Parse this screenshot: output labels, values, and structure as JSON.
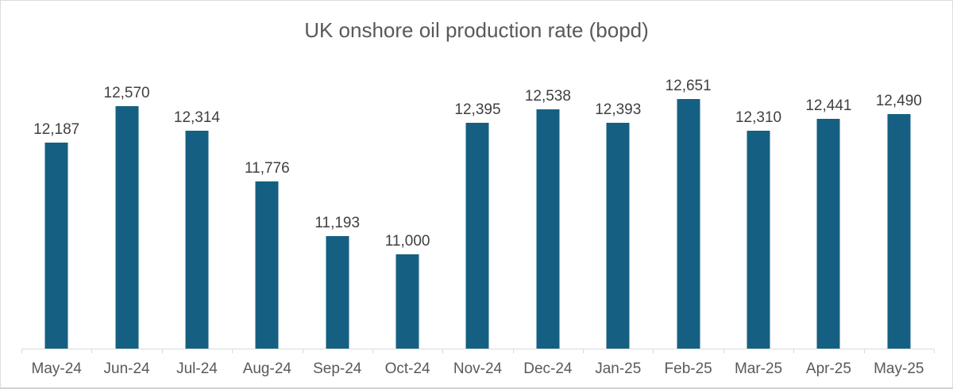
{
  "chart_data": {
    "type": "bar",
    "title": "UK onshore oil production rate (bopd)",
    "categories": [
      "May-24",
      "Jun-24",
      "Jul-24",
      "Aug-24",
      "Sep-24",
      "Oct-24",
      "Nov-24",
      "Dec-24",
      "Jan-25",
      "Feb-25",
      "Mar-25",
      "Apr-25",
      "May-25"
    ],
    "values": [
      12187,
      12570,
      12314,
      11776,
      11193,
      11000,
      12395,
      12538,
      12393,
      12651,
      12310,
      12441,
      12490
    ],
    "data_labels": [
      "12,187",
      "12,570",
      "12,314",
      "11,776",
      "11,193",
      "11,000",
      "12,395",
      "12,538",
      "12,393",
      "12,651",
      "12,310",
      "12,441",
      "12,490"
    ],
    "xlabel": "",
    "ylabel": "",
    "ylim": [
      10000,
      13000
    ],
    "grid": false,
    "legend": "none",
    "colors": {
      "bar": "#156082",
      "title": "#595959",
      "data_label": "#404040",
      "axis_label": "#595959",
      "axis_line": "#d9d9d9"
    }
  }
}
